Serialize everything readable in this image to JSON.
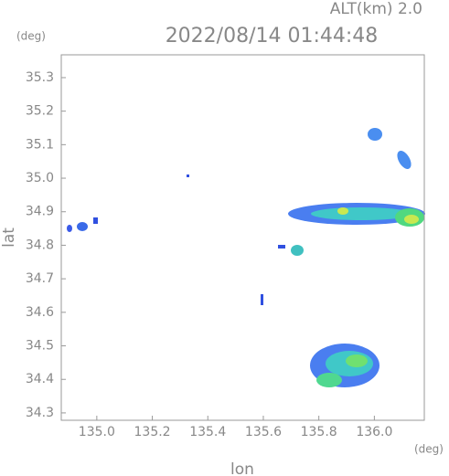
{
  "chart_data": {
    "type": "map",
    "title": "2022/08/14 01:44:48",
    "subtitle": "ALT(km) 2.0",
    "x_label": "lon",
    "y_label": "lat",
    "x_unit": "(deg)",
    "y_unit": "(deg)",
    "xlim": [
      134.872,
      136.18
    ],
    "ylim": [
      34.278,
      35.368
    ],
    "xticks": [
      {
        "value": 135.0,
        "label": "135.0"
      },
      135.2,
      135.4,
      135.6,
      135.8,
      {
        "value": 136.0,
        "label": "136.0"
      }
    ],
    "yticks": [
      34.3,
      34.4,
      34.5,
      34.6,
      34.7,
      34.8,
      34.9,
      {
        "value": 35.0,
        "label": "35.0"
      },
      35.1,
      35.2,
      35.3
    ]
  }
}
